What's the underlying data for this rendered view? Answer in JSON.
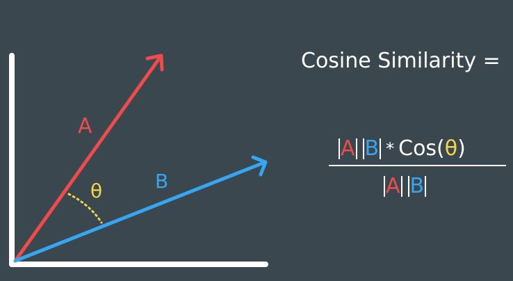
{
  "colors": {
    "background": "#3b474e",
    "axes": "#ffffff",
    "vector_a": "#ee4b4d",
    "vector_b": "#36a6f0",
    "theta": "#f3d64a"
  },
  "diagram": {
    "vector_a_label": "A",
    "vector_b_label": "B",
    "angle_label": "θ"
  },
  "formula": {
    "title": "Cosine Similarity =",
    "numerator": {
      "a": "A",
      "b": "B",
      "operator": "*",
      "cos_open": "Cos(",
      "theta": "θ",
      "cos_close": ")"
    },
    "denominator": {
      "a": "A",
      "b": "B"
    }
  }
}
